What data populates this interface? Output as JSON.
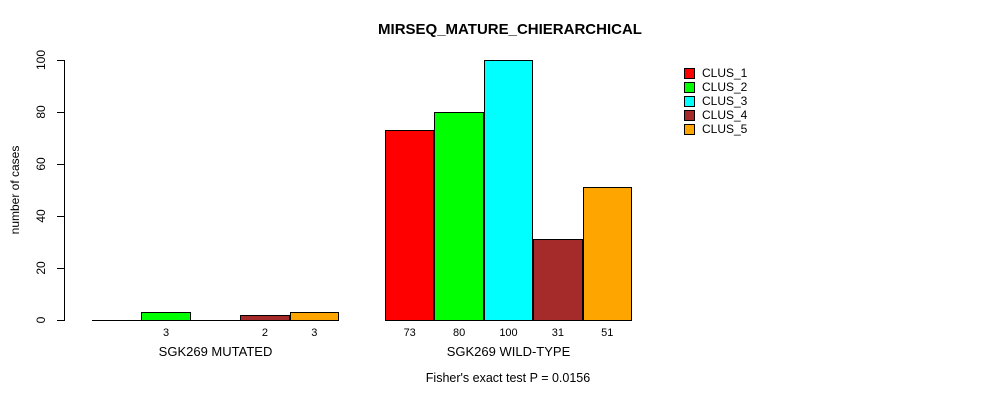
{
  "title": "MIRSEQ_MATURE_CHIERARCHICAL",
  "footer_note": "Fisher's exact test P = 0.0156",
  "chart_data": {
    "type": "bar",
    "title": "MIRSEQ_MATURE_CHIERARCHICAL",
    "xlabel": "",
    "ylabel": "number of cases",
    "ylim": [
      0,
      100
    ],
    "yticks": [
      0,
      20,
      40,
      60,
      80,
      100
    ],
    "categories": [
      "SGK269 MUTATED",
      "SGK269 WILD-TYPE"
    ],
    "series": [
      {
        "name": "CLUS_1",
        "color": "#FF0000",
        "values": [
          0,
          73
        ]
      },
      {
        "name": "CLUS_2",
        "color": "#00FF00",
        "values": [
          3,
          80
        ]
      },
      {
        "name": "CLUS_3",
        "color": "#00FFFF",
        "values": [
          0,
          100
        ]
      },
      {
        "name": "CLUS_4",
        "color": "#A52A2A",
        "values": [
          2,
          31
        ]
      },
      {
        "name": "CLUS_5",
        "color": "#FFA500",
        "values": [
          3,
          51
        ]
      }
    ],
    "bar_value_labels": {
      "SGK269 MUTATED": [
        null,
        3,
        null,
        2,
        3
      ],
      "SGK269 WILD-TYPE": [
        73,
        80,
        100,
        31,
        51
      ]
    },
    "annotation": "Fisher's exact test P = 0.0156",
    "legend_position": "top-right",
    "grid": false,
    "background": "#FFFFFF",
    "bar_border_color": "#000000",
    "text_color": "#000000"
  }
}
